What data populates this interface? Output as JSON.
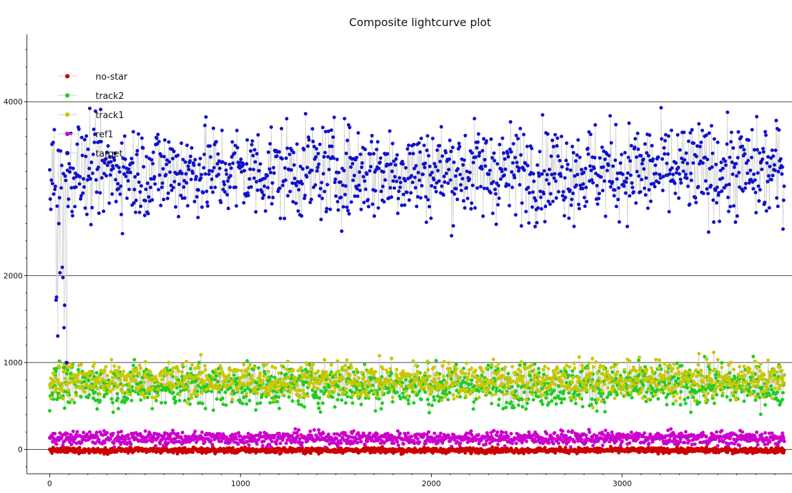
{
  "chart_data": {
    "type": "scatter",
    "title": "Composite lightcurve plot",
    "xlabel": "",
    "ylabel": "",
    "xlim": [
      -120,
      3890
    ],
    "ylim": [
      -280,
      4760
    ],
    "x_ticks": [
      0,
      1000,
      2000,
      3000
    ],
    "y_ticks": [
      0,
      1000,
      2000,
      4000
    ],
    "grid_y": true,
    "grid_x": false,
    "legend_position": "top-left",
    "n_points": 3850,
    "series": [
      {
        "name": "no-star",
        "color": "#cc0000",
        "mean": -10,
        "spread": 22,
        "connector": false
      },
      {
        "name": "track2",
        "color": "#22cc22",
        "mean": 730,
        "spread": 170,
        "connector": true
      },
      {
        "name": "track1",
        "color": "#c8c800",
        "mean": 800,
        "spread": 150,
        "connector": true
      },
      {
        "name": "ref1",
        "color": "#cc00cc",
        "mean": 130,
        "spread": 55,
        "connector": false
      },
      {
        "name": "target",
        "color": "#1010cc",
        "mean": 3200,
        "spread": 380,
        "connector": true
      }
    ],
    "legend_order": [
      "no-star",
      "track2",
      "track1",
      "ref1",
      "target"
    ],
    "legend_visible_text": [
      "no-star",
      "track2",
      "track1",
      "ref1",
      "target"
    ]
  }
}
